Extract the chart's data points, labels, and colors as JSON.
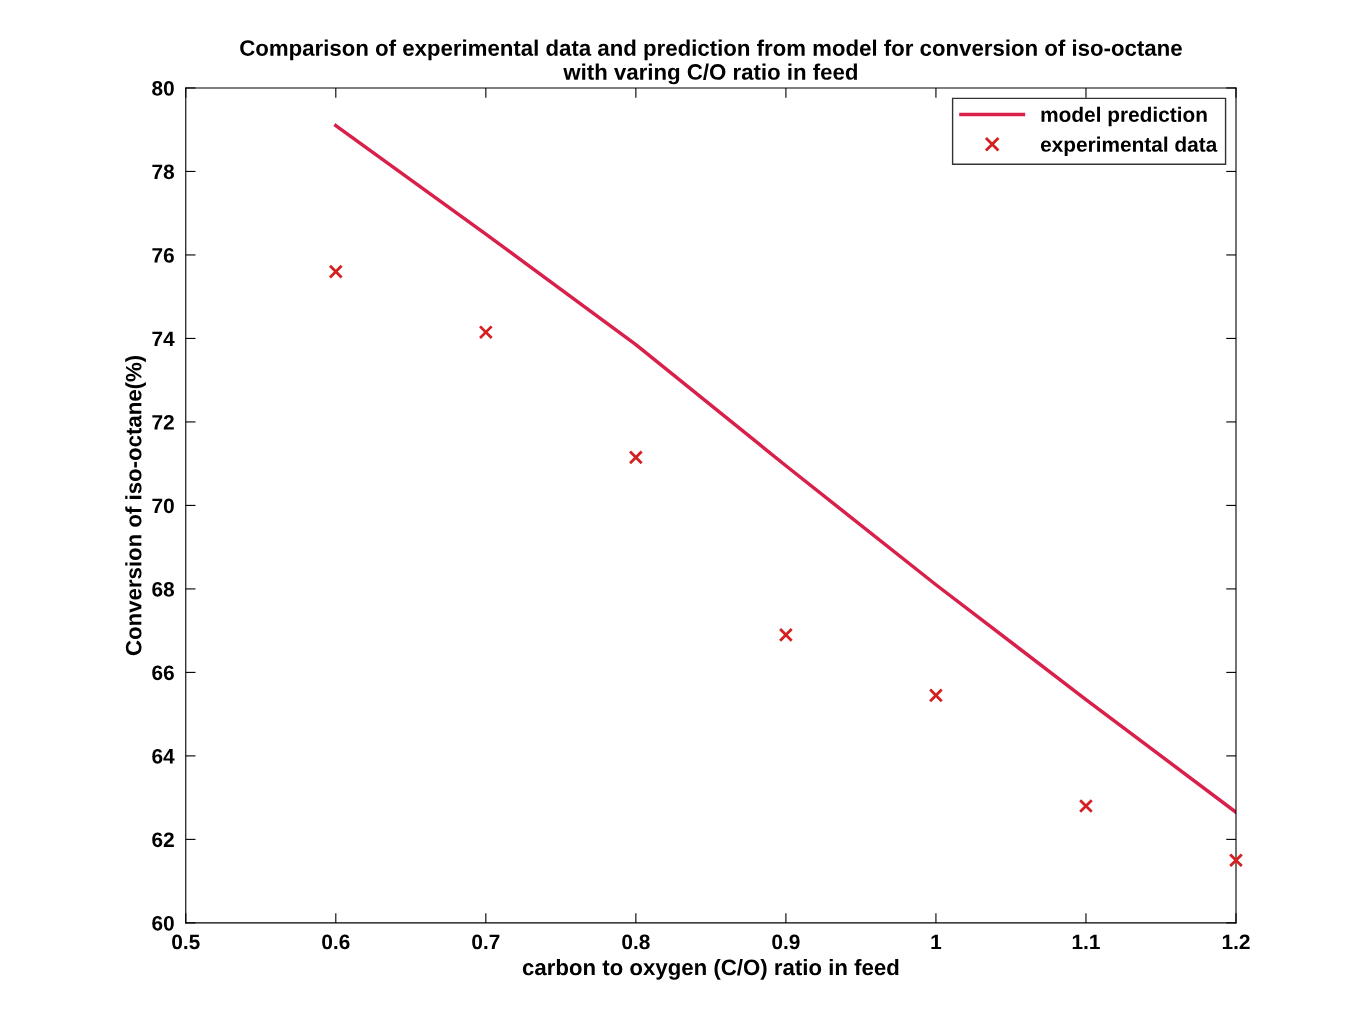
{
  "chart_data": {
    "type": "line",
    "title": "Comparison of experimental data and prediction from model for conversion of iso-octane\nwith varing C/O ratio in feed",
    "xlabel": "carbon to oxygen (C/O) ratio in feed",
    "ylabel": "Conversion of iso-octane(%)",
    "series": [
      {
        "name": "model prediction",
        "color": "#d8204a",
        "marker": "none",
        "line_style": "solid",
        "x": [
          0.6,
          0.7,
          0.8,
          0.9,
          1.0,
          1.1,
          1.2
        ],
        "values": [
          79.1,
          76.5,
          73.85,
          70.95,
          68.1,
          65.35,
          62.65
        ]
      },
      {
        "name": "experimental data",
        "type": "scatter",
        "color": "#d42020",
        "marker": "cross",
        "x": [
          0.6,
          0.7,
          0.8,
          0.9,
          1.0,
          1.1,
          1.2
        ],
        "values": [
          75.6,
          74.15,
          71.15,
          66.9,
          65.45,
          62.8,
          61.5
        ]
      }
    ],
    "xlim": [
      0.5,
      1.2
    ],
    "xticks": [
      0.5,
      0.6,
      0.7,
      0.8,
      0.9,
      1,
      1.1,
      1.2
    ],
    "ylim": [
      60,
      80
    ],
    "yticks": [
      60,
      62,
      64,
      66,
      68,
      70,
      72,
      74,
      76,
      78,
      80
    ],
    "grid": false,
    "legend": "top right"
  }
}
